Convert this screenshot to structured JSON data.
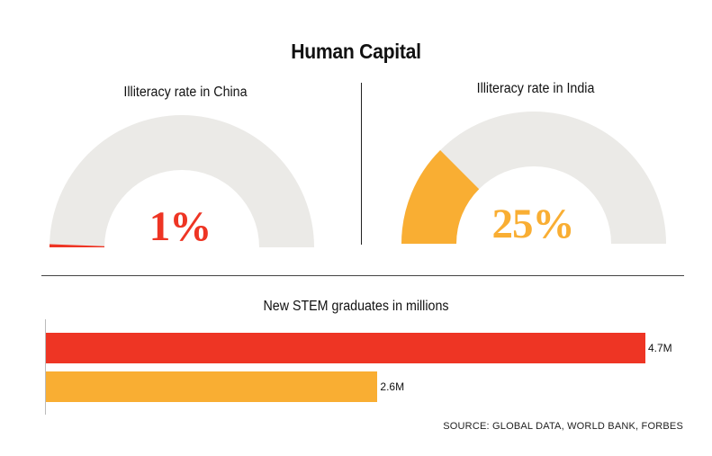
{
  "title": "Human Capital",
  "colors": {
    "china": "#EE3524",
    "india": "#F9AE33",
    "track": "#EBEAE7",
    "text": "#111111"
  },
  "chart_data": [
    {
      "type": "gauge",
      "title": "Illiteracy rate in China",
      "value": 1,
      "max": 100,
      "value_label": "1%",
      "color": "#EE3524"
    },
    {
      "type": "gauge",
      "title": "Illiteracy rate in India",
      "value": 25,
      "max": 100,
      "value_label": "25%",
      "color": "#F9AE33"
    },
    {
      "type": "bar",
      "orientation": "horizontal",
      "title": "New STEM graduates in millions",
      "values": [
        4.7,
        2.6
      ],
      "value_labels": [
        "4.7M",
        "2.6M"
      ],
      "colors": [
        "#EE3524",
        "#F9AE33"
      ],
      "xlim": [
        0,
        4.7
      ]
    }
  ],
  "source": "SOURCE: GLOBAL DATA, WORLD BANK, FORBES"
}
